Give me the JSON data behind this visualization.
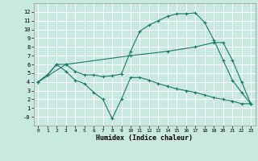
{
  "xlabel": "Humidex (Indice chaleur)",
  "bg_color": "#c8e8e0",
  "grid_color": "#ffffff",
  "line_color": "#1a7a6a",
  "line1_x": [
    0,
    1,
    2,
    3,
    4,
    5,
    6,
    7,
    8,
    9,
    10,
    11,
    12,
    13,
    14,
    15,
    16,
    17,
    18,
    19,
    20,
    21,
    22,
    23
  ],
  "line1_y": [
    4.0,
    4.8,
    6.0,
    6.0,
    5.2,
    4.8,
    4.8,
    4.6,
    4.7,
    4.9,
    7.5,
    9.8,
    10.5,
    11.0,
    11.5,
    11.8,
    11.8,
    11.9,
    10.8,
    8.8,
    6.5,
    4.2,
    2.8,
    1.5
  ],
  "line2_x": [
    0,
    3,
    10,
    14,
    17,
    19,
    20,
    21,
    22,
    23
  ],
  "line2_y": [
    4.0,
    6.0,
    7.0,
    7.5,
    8.0,
    8.5,
    8.5,
    6.5,
    4.0,
    1.5
  ],
  "line3_x": [
    0,
    1,
    2,
    3,
    4,
    5,
    6,
    7,
    8,
    9,
    10,
    11,
    12,
    13,
    14,
    15,
    16,
    17,
    18,
    19,
    20,
    21,
    22,
    23
  ],
  "line3_y": [
    4.0,
    4.8,
    6.0,
    5.2,
    4.2,
    3.8,
    2.8,
    2.0,
    -0.2,
    2.0,
    4.5,
    4.5,
    4.2,
    3.8,
    3.5,
    3.2,
    3.0,
    2.8,
    2.5,
    2.2,
    2.0,
    1.8,
    1.5,
    1.5
  ],
  "xlim": [
    -0.5,
    23.5
  ],
  "ylim": [
    -1,
    13
  ],
  "yticks": [
    0,
    1,
    2,
    3,
    4,
    5,
    6,
    7,
    8,
    9,
    10,
    11,
    12
  ],
  "ytick_labels": [
    "-0",
    "1",
    "2",
    "3",
    "4",
    "5",
    "6",
    "7",
    "8",
    "9",
    "10",
    "11",
    "12"
  ],
  "xticks": [
    0,
    1,
    2,
    3,
    4,
    5,
    6,
    7,
    8,
    9,
    10,
    11,
    12,
    13,
    14,
    15,
    16,
    17,
    18,
    19,
    20,
    21,
    22,
    23
  ]
}
